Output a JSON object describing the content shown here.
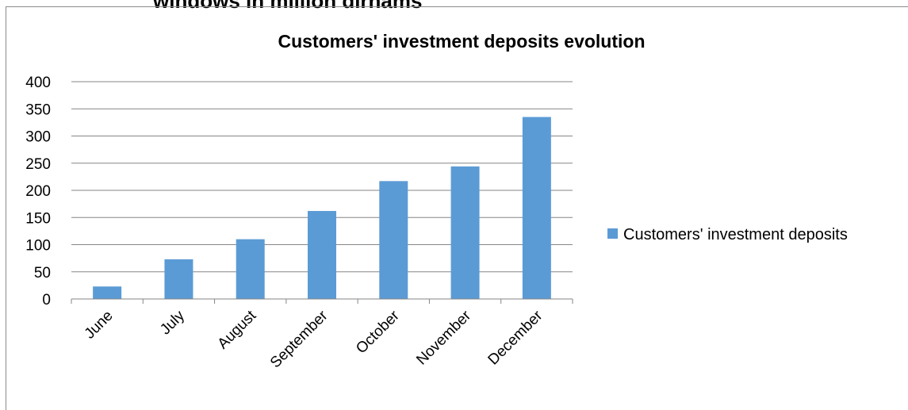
{
  "page": {
    "cut_heading": "windows in million dirhams"
  },
  "chart_data": {
    "type": "bar",
    "title": "Customers' investment deposits evolution",
    "categories": [
      "June",
      "July",
      "August",
      "September",
      "October",
      "November",
      "December"
    ],
    "series": [
      {
        "name": "Customers' investment deposits",
        "values": [
          23,
          73,
          110,
          162,
          217,
          244,
          335
        ],
        "color": "#5b9bd5"
      }
    ],
    "yticks": [
      "0",
      "50",
      "100",
      "150",
      "200",
      "250",
      "300",
      "350",
      "400"
    ],
    "ylim": [
      0,
      400
    ],
    "xlabel": "",
    "ylabel": "",
    "grid": true,
    "legend_position": "right",
    "gridline_color": "#868686"
  }
}
